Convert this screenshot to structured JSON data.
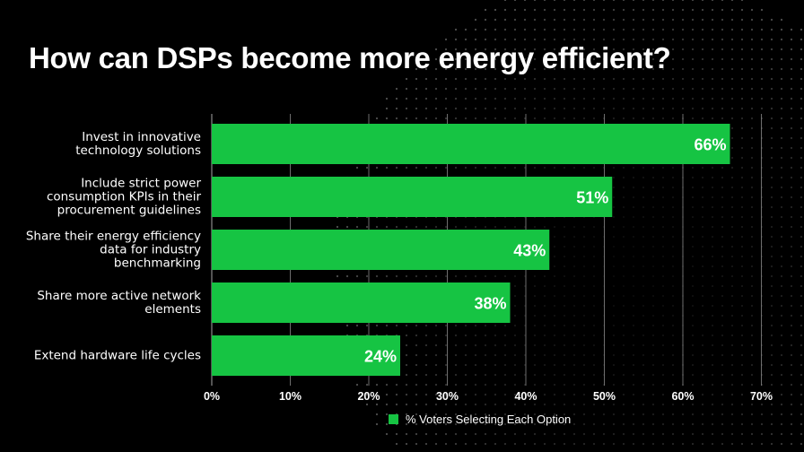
{
  "title": "How can DSPs become more energy efficient?",
  "chart_data": {
    "type": "bar",
    "orientation": "horizontal",
    "categories": [
      "Invest in innovative technology solutions",
      "Include strict power consumption KPIs in their procurement guidelines",
      "Share their energy efficiency data for industry benchmarking",
      "Share more active network elements",
      "Extend hardware life cycles"
    ],
    "category_lines": [
      "Invest in innovative\ntechnology solutions",
      "Include strict power\nconsumption KPIs in their\nprocurement guidelines",
      "Share their energy efficiency\ndata for industry\nbenchmarking",
      "Share more active network\nelements",
      "Extend hardware life cycles"
    ],
    "values": [
      66,
      51,
      43,
      38,
      24
    ],
    "data_labels": [
      "66%",
      "51%",
      "43%",
      "38%",
      "24%"
    ],
    "series": [
      {
        "name": "% Voters Selecting Each Option",
        "values": [
          66,
          51,
          43,
          38,
          24
        ]
      }
    ],
    "xlim": [
      0,
      70
    ],
    "xticks": [
      "0%",
      "10%",
      "20%",
      "30%",
      "40%",
      "50%",
      "60%",
      "70%"
    ],
    "grid": true,
    "legend_position": "bottom"
  },
  "colors": {
    "bar": "#16c443",
    "background": "#000000",
    "text": "#ffffff",
    "grid": "#8a8a8a"
  }
}
